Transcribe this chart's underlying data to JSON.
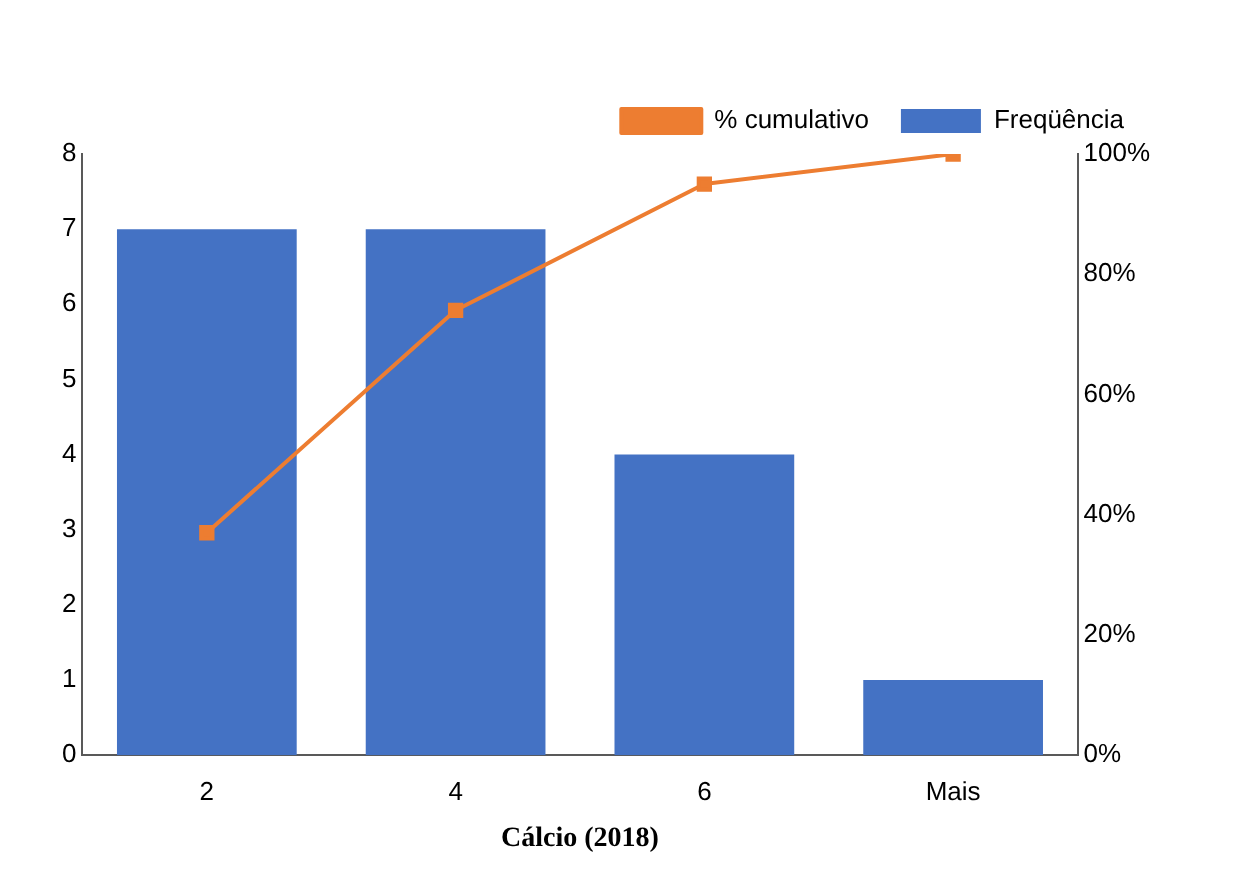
{
  "chart_data": {
    "type": "bar",
    "xlabel": "Cálcio (2018)",
    "categories": [
      "2",
      "4",
      "6",
      "Mais"
    ],
    "series": [
      {
        "name": "Freqüência",
        "color": "#4472c4",
        "values": [
          7,
          7,
          4,
          1
        ]
      },
      {
        "name": "% cumulativo",
        "type": "line",
        "axis": "y2",
        "color": "#ed7d31",
        "marker": "square",
        "values": [
          37,
          74,
          95,
          100
        ]
      }
    ],
    "ylim": [
      0,
      8
    ],
    "yticks": [
      0,
      1,
      2,
      3,
      4,
      5,
      6,
      7,
      8
    ],
    "y2lim": [
      0,
      100
    ],
    "y2ticks": [
      {
        "value": 0,
        "label": "0%"
      },
      {
        "value": 20,
        "label": "20%"
      },
      {
        "value": 40,
        "label": "40%"
      },
      {
        "value": 60,
        "label": "60%"
      },
      {
        "value": 80,
        "label": "80%"
      },
      {
        "value": 100,
        "label": "100%"
      }
    ],
    "legend": "top right"
  }
}
